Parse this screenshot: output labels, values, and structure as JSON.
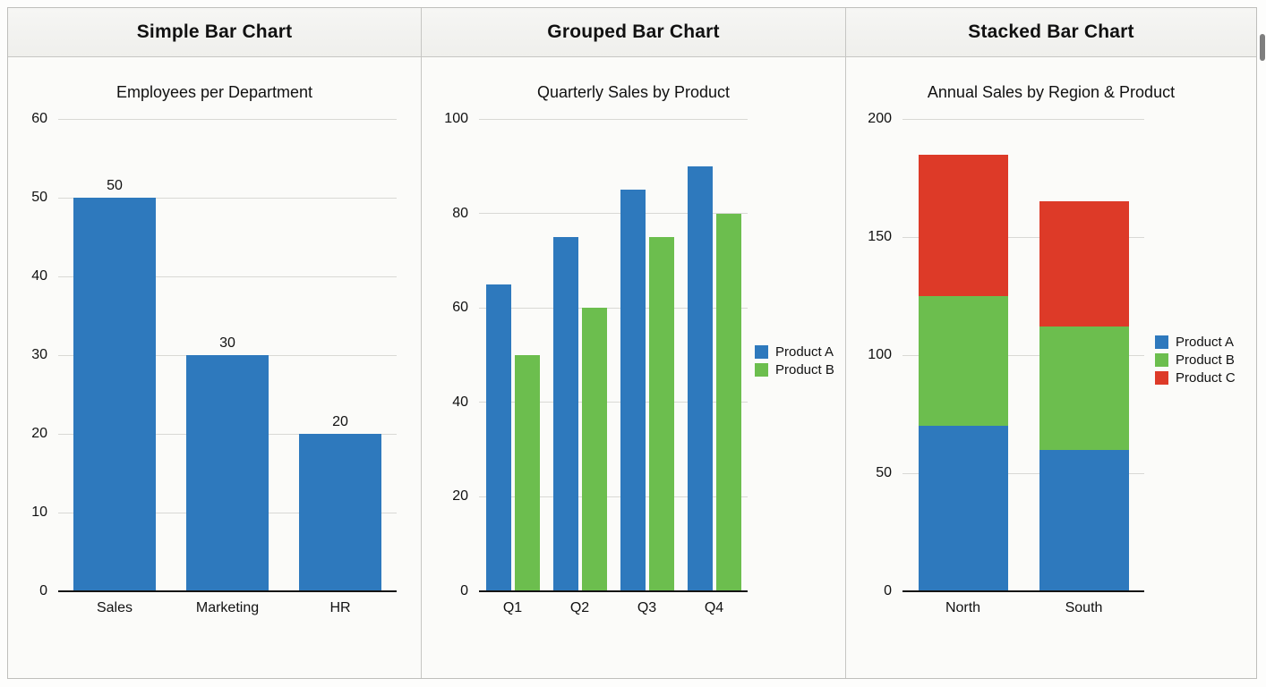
{
  "header_labels": [
    "Simple Bar Chart",
    "Grouped Bar Chart",
    "Stacked Bar Chart"
  ],
  "colors": {
    "product_a_blue": "#2e79bd",
    "product_b_green": "#6cbe4e",
    "product_c_red": "#dd3a28",
    "gridline": "#d9d9d5",
    "header_bg": "#f2f2ef"
  },
  "chart_data": [
    {
      "type": "bar",
      "title": "Employees per Department",
      "categories": [
        "Sales",
        "Marketing",
        "HR"
      ],
      "values": [
        50,
        30,
        20
      ],
      "show_values": true,
      "bar_color": "#2e79bd",
      "ylim": [
        0,
        60
      ],
      "yticks": [
        0,
        10,
        20,
        30,
        40,
        50,
        60
      ],
      "xlabel": "",
      "ylabel": "",
      "grid": true,
      "legend": false
    },
    {
      "type": "bar",
      "title": "Quarterly Sales by Product",
      "categories": [
        "Q1",
        "Q2",
        "Q3",
        "Q4"
      ],
      "series": [
        {
          "name": "Product A",
          "color": "#2e79bd",
          "values": [
            65,
            75,
            85,
            90
          ]
        },
        {
          "name": "Product B",
          "color": "#6cbe4e",
          "values": [
            50,
            60,
            75,
            80
          ]
        }
      ],
      "ylim": [
        0,
        100
      ],
      "yticks": [
        0,
        20,
        40,
        60,
        80,
        100
      ],
      "xlabel": "",
      "ylabel": "",
      "grid": true,
      "legend": true,
      "legend_position": "right"
    },
    {
      "type": "stacked-bar",
      "title": "Annual Sales by Region & Product",
      "categories": [
        "North",
        "South"
      ],
      "series": [
        {
          "name": "Product A",
          "color": "#2e79bd",
          "values": [
            70,
            60
          ]
        },
        {
          "name": "Product B",
          "color": "#6cbe4e",
          "values": [
            55,
            52
          ]
        },
        {
          "name": "Product C",
          "color": "#dd3a28",
          "values": [
            60,
            53
          ]
        }
      ],
      "ylim": [
        0,
        200
      ],
      "yticks": [
        0,
        50,
        100,
        150,
        200
      ],
      "xlabel": "",
      "ylabel": "",
      "grid": true,
      "legend": true,
      "legend_position": "right"
    }
  ]
}
